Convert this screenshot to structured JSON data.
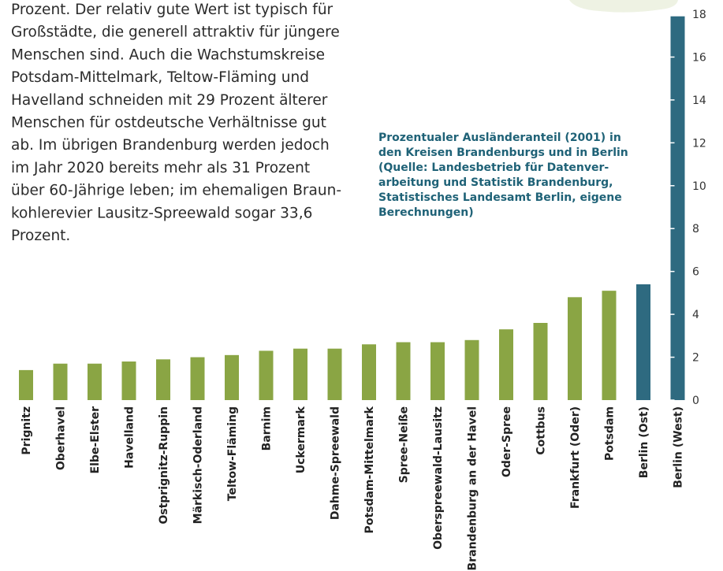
{
  "paragraph": [
    "Prozent. Der relativ gute Wert ist typisch für",
    "Großstädte, die generell attraktiv für jüngere",
    "Menschen sind. Auch die Wachstumskreise",
    "Potsdam-Mittelmark, Teltow-Fläming und",
    "Havelland schneiden mit 29 Prozent älterer",
    "Menschen für ostdeutsche Verhältnisse gut",
    "ab. Im übrigen Brandenburg werden jedoch",
    "im Jahr 2020 bereits mehr als 31 Prozent",
    "über 60-Jährige leben; im ehemaligen Braun-",
    "kohlerevier Lausitz-Spreewald sogar 33,6",
    "Prozent."
  ],
  "chart_data": {
    "type": "bar",
    "title": [
      "Prozentualer Ausländeranteil (2001) in",
      "den Kreisen Brandenburgs und in Berlin",
      "(Quelle: Landesbetrieb für Datenver-",
      "arbeitung und Statistik Brandenburg,",
      "Statistisches Landesamt Berlin, eigene",
      "Berechnungen)"
    ],
    "categories": [
      "Prignitz",
      "Oberhavel",
      "Elbe-Elster",
      "Havelland",
      "Ostprignitz-Ruppin",
      "Märkisch-Oderland",
      "Teltow-Fläming",
      "Barnim",
      "Uckermark",
      "Dahme-Spreewald",
      "Potsdam-Mittelmark",
      "Spree-Neiße",
      "Oberspreewald-Lausitz",
      "Brandenburg an der Havel",
      "Oder-Spree",
      "Cottbus",
      "Frankfurt (Oder)",
      "Potsdam",
      "Berlin (Ost)",
      "Berlin (West)"
    ],
    "values": [
      1.4,
      1.7,
      1.7,
      1.8,
      1.9,
      2.0,
      2.1,
      2.3,
      2.4,
      2.4,
      2.6,
      2.7,
      2.7,
      2.8,
      3.3,
      3.6,
      4.8,
      5.1,
      5.4,
      17.9
    ],
    "colors": [
      "#8aa544",
      "#8aa544",
      "#8aa544",
      "#8aa544",
      "#8aa544",
      "#8aa544",
      "#8aa544",
      "#8aa544",
      "#8aa544",
      "#8aa544",
      "#8aa544",
      "#8aa544",
      "#8aa544",
      "#8aa544",
      "#8aa544",
      "#8aa544",
      "#8aa544",
      "#8aa544",
      "#2e6a80",
      "#2e6a80"
    ],
    "ylim": [
      0,
      18
    ],
    "yticks": [
      0,
      2,
      4,
      6,
      8,
      10,
      12,
      14,
      16,
      18
    ]
  }
}
